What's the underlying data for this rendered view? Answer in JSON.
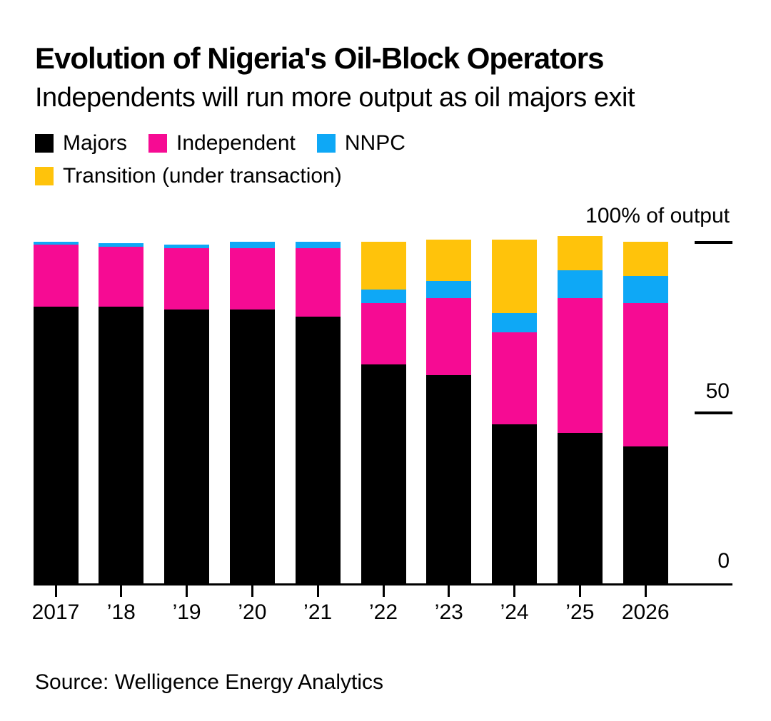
{
  "title": "Evolution of Nigeria's Oil-Block Operators",
  "subtitle": "Independents will run more output as oil majors exit",
  "legend": {
    "items": [
      {
        "label": "Majors",
        "color": "#000000"
      },
      {
        "label": "Independent",
        "color": "#F60B93"
      },
      {
        "label": "NNPC",
        "color": "#0EA8F6"
      },
      {
        "label": "Transition (under transaction)",
        "color": "#FFC30B"
      }
    ]
  },
  "y_axis": {
    "top_label": "100% of output",
    "mid_label": "50",
    "zero_label": "0"
  },
  "source": "Source: Welligence Energy Analytics",
  "chart_data": {
    "type": "bar",
    "stacked": true,
    "title": "Evolution of Nigeria's Oil-Block Operators",
    "subtitle": "Independents will run more output as oil majors exit",
    "unit": "% of output",
    "categories": [
      "2017",
      "’18",
      "’19",
      "’20",
      "’21",
      "’22",
      "’23",
      "’24",
      "’25",
      "2026"
    ],
    "series": [
      {
        "name": "Majors",
        "color": "#000000",
        "values": [
          81,
          81,
          80,
          80,
          78,
          64,
          61,
          46.5,
          44,
          40
        ]
      },
      {
        "name": "Independent",
        "color": "#F60B93",
        "values": [
          18,
          17.5,
          18,
          18,
          20,
          18,
          22.5,
          27,
          39.5,
          42
        ]
      },
      {
        "name": "NNPC",
        "color": "#0EA8F6",
        "values": [
          1,
          1,
          1,
          2,
          2,
          4,
          5,
          5.5,
          8,
          8
        ]
      },
      {
        "name": "Transition (under transaction)",
        "color": "#FFC30B",
        "values": [
          0,
          0,
          0,
          0,
          0,
          14,
          12,
          21.5,
          10,
          10
        ]
      }
    ],
    "ylim": [
      0,
      100
    ],
    "yticks": [
      {
        "value": 100,
        "label": "100% of output"
      },
      {
        "value": 50,
        "label": "50"
      },
      {
        "value": 0,
        "label": "0"
      }
    ],
    "xlabel": "",
    "ylabel": "100% of output",
    "legend_position": "top-left",
    "grid": false
  }
}
